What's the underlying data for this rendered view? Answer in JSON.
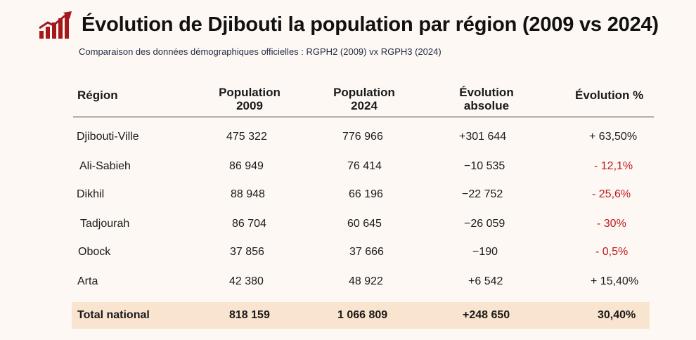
{
  "title": "Évolution de Djibouti la population par région (2009 vs 2024)",
  "subtitle": "Comparaison des données démographiques officielles : RGPH2 (2009) vx RGPH3 (2024)",
  "logo_icon": "bar-chart-growth-icon",
  "colors": {
    "accent": "#a3191c",
    "negative": "#c0191c",
    "total_bg": "#f9e4cf",
    "page_bg": "#fdf8f3"
  },
  "headers": {
    "region": "Région",
    "pop2009_l1": "Population",
    "pop2009_l2": "2009",
    "pop2024_l1": "Population",
    "pop2024_l2": "2024",
    "evo_abs_l1": "Évolution",
    "evo_abs_l2": "absolue",
    "evo_pct": "Évolution %"
  },
  "rows": [
    {
      "region": "Djibouti-Ville",
      "pop2009": "475 322",
      "pop2024": "776 966",
      "evo_abs": "+301 644",
      "evo_pct": "+ 63,50%"
    },
    {
      "region": "Ali-Sabieh",
      "pop2009": "86 949",
      "pop2024": "76 414",
      "evo_abs": "−10 535",
      "evo_pct": "- 12,1%"
    },
    {
      "region": "Dikhil",
      "pop2009": "88 948",
      "pop2024": "66 196",
      "evo_abs": "−22 752",
      "evo_pct": "- 25,6%"
    },
    {
      "region": "Tadjourah",
      "pop2009": "86 704",
      "pop2024": "60 645",
      "evo_abs": "−26 059",
      "evo_pct": "- 30%"
    },
    {
      "region": "Obock",
      "pop2009": "37 856",
      "pop2024": "37 666",
      "evo_abs": "−190",
      "evo_pct": "- 0,5%"
    },
    {
      "region": "Arta",
      "pop2009": "42 380",
      "pop2024": "48 922",
      "evo_abs": "+6 542",
      "evo_pct": "+ 15,40%"
    }
  ],
  "total": {
    "region": "Total national",
    "pop2009": "818 159",
    "pop2024": "1 066 809",
    "evo_abs": "+248 650",
    "evo_pct": "30,40%"
  }
}
